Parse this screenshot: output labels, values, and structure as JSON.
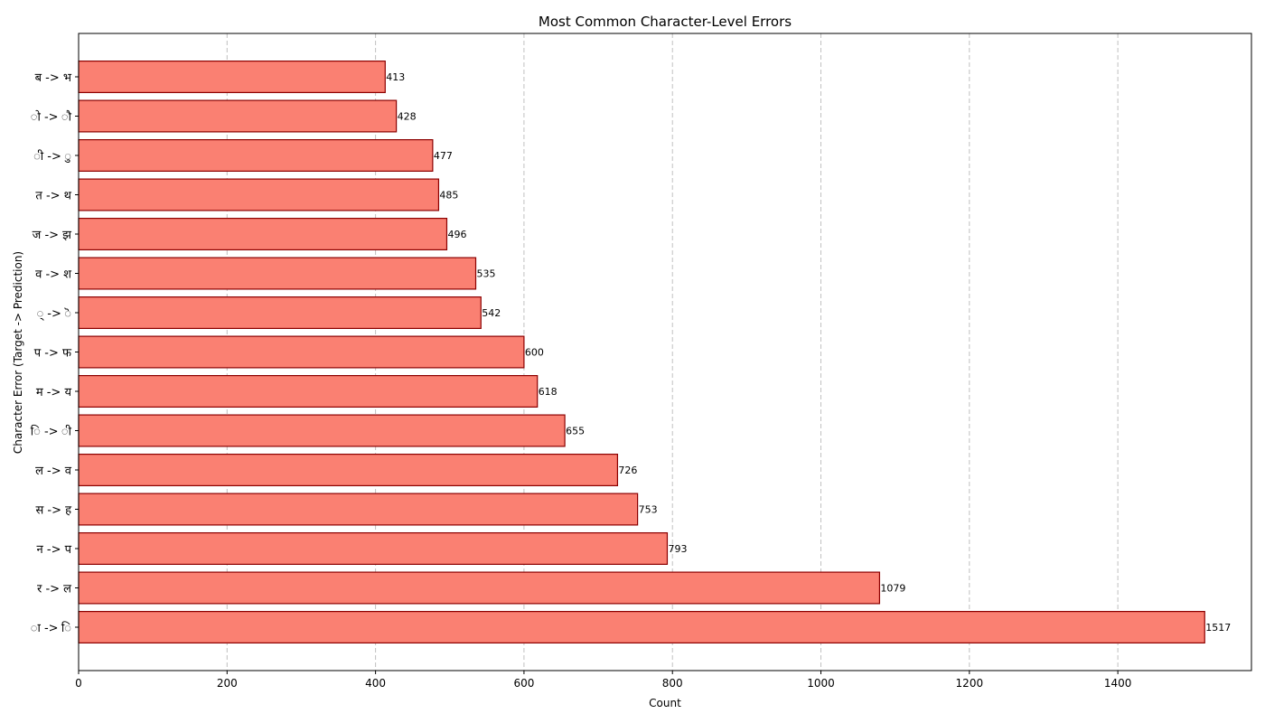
{
  "colors": {
    "bar_fill": "#fa8072",
    "bar_edge": "#8b0000",
    "grid": "#c0c0c0",
    "axis": "#000000"
  },
  "chart_data": {
    "type": "bar",
    "orientation": "horizontal",
    "title": "Most Common Character-Level Errors",
    "xlabel": "Count",
    "ylabel": "Character Error (Target -> Prediction)",
    "xlim": [
      0,
      1580
    ],
    "xticks": [
      0,
      200,
      400,
      600,
      800,
      1000,
      1200,
      1400
    ],
    "grid": "x-dashed",
    "categories": [
      "ा -> ि",
      "र -> ल",
      "न -> प",
      "स -> ह",
      "ल -> व",
      "ि -> ी",
      "म -> य",
      "प -> फ",
      "् -> ॆ",
      "व -> श",
      "ज -> झ",
      "त -> थ",
      "ी -> ु",
      "ो -> ौ",
      "ब -> भ"
    ],
    "values": [
      1517,
      1079,
      793,
      753,
      726,
      655,
      618,
      600,
      542,
      535,
      496,
      485,
      477,
      428,
      413
    ]
  }
}
